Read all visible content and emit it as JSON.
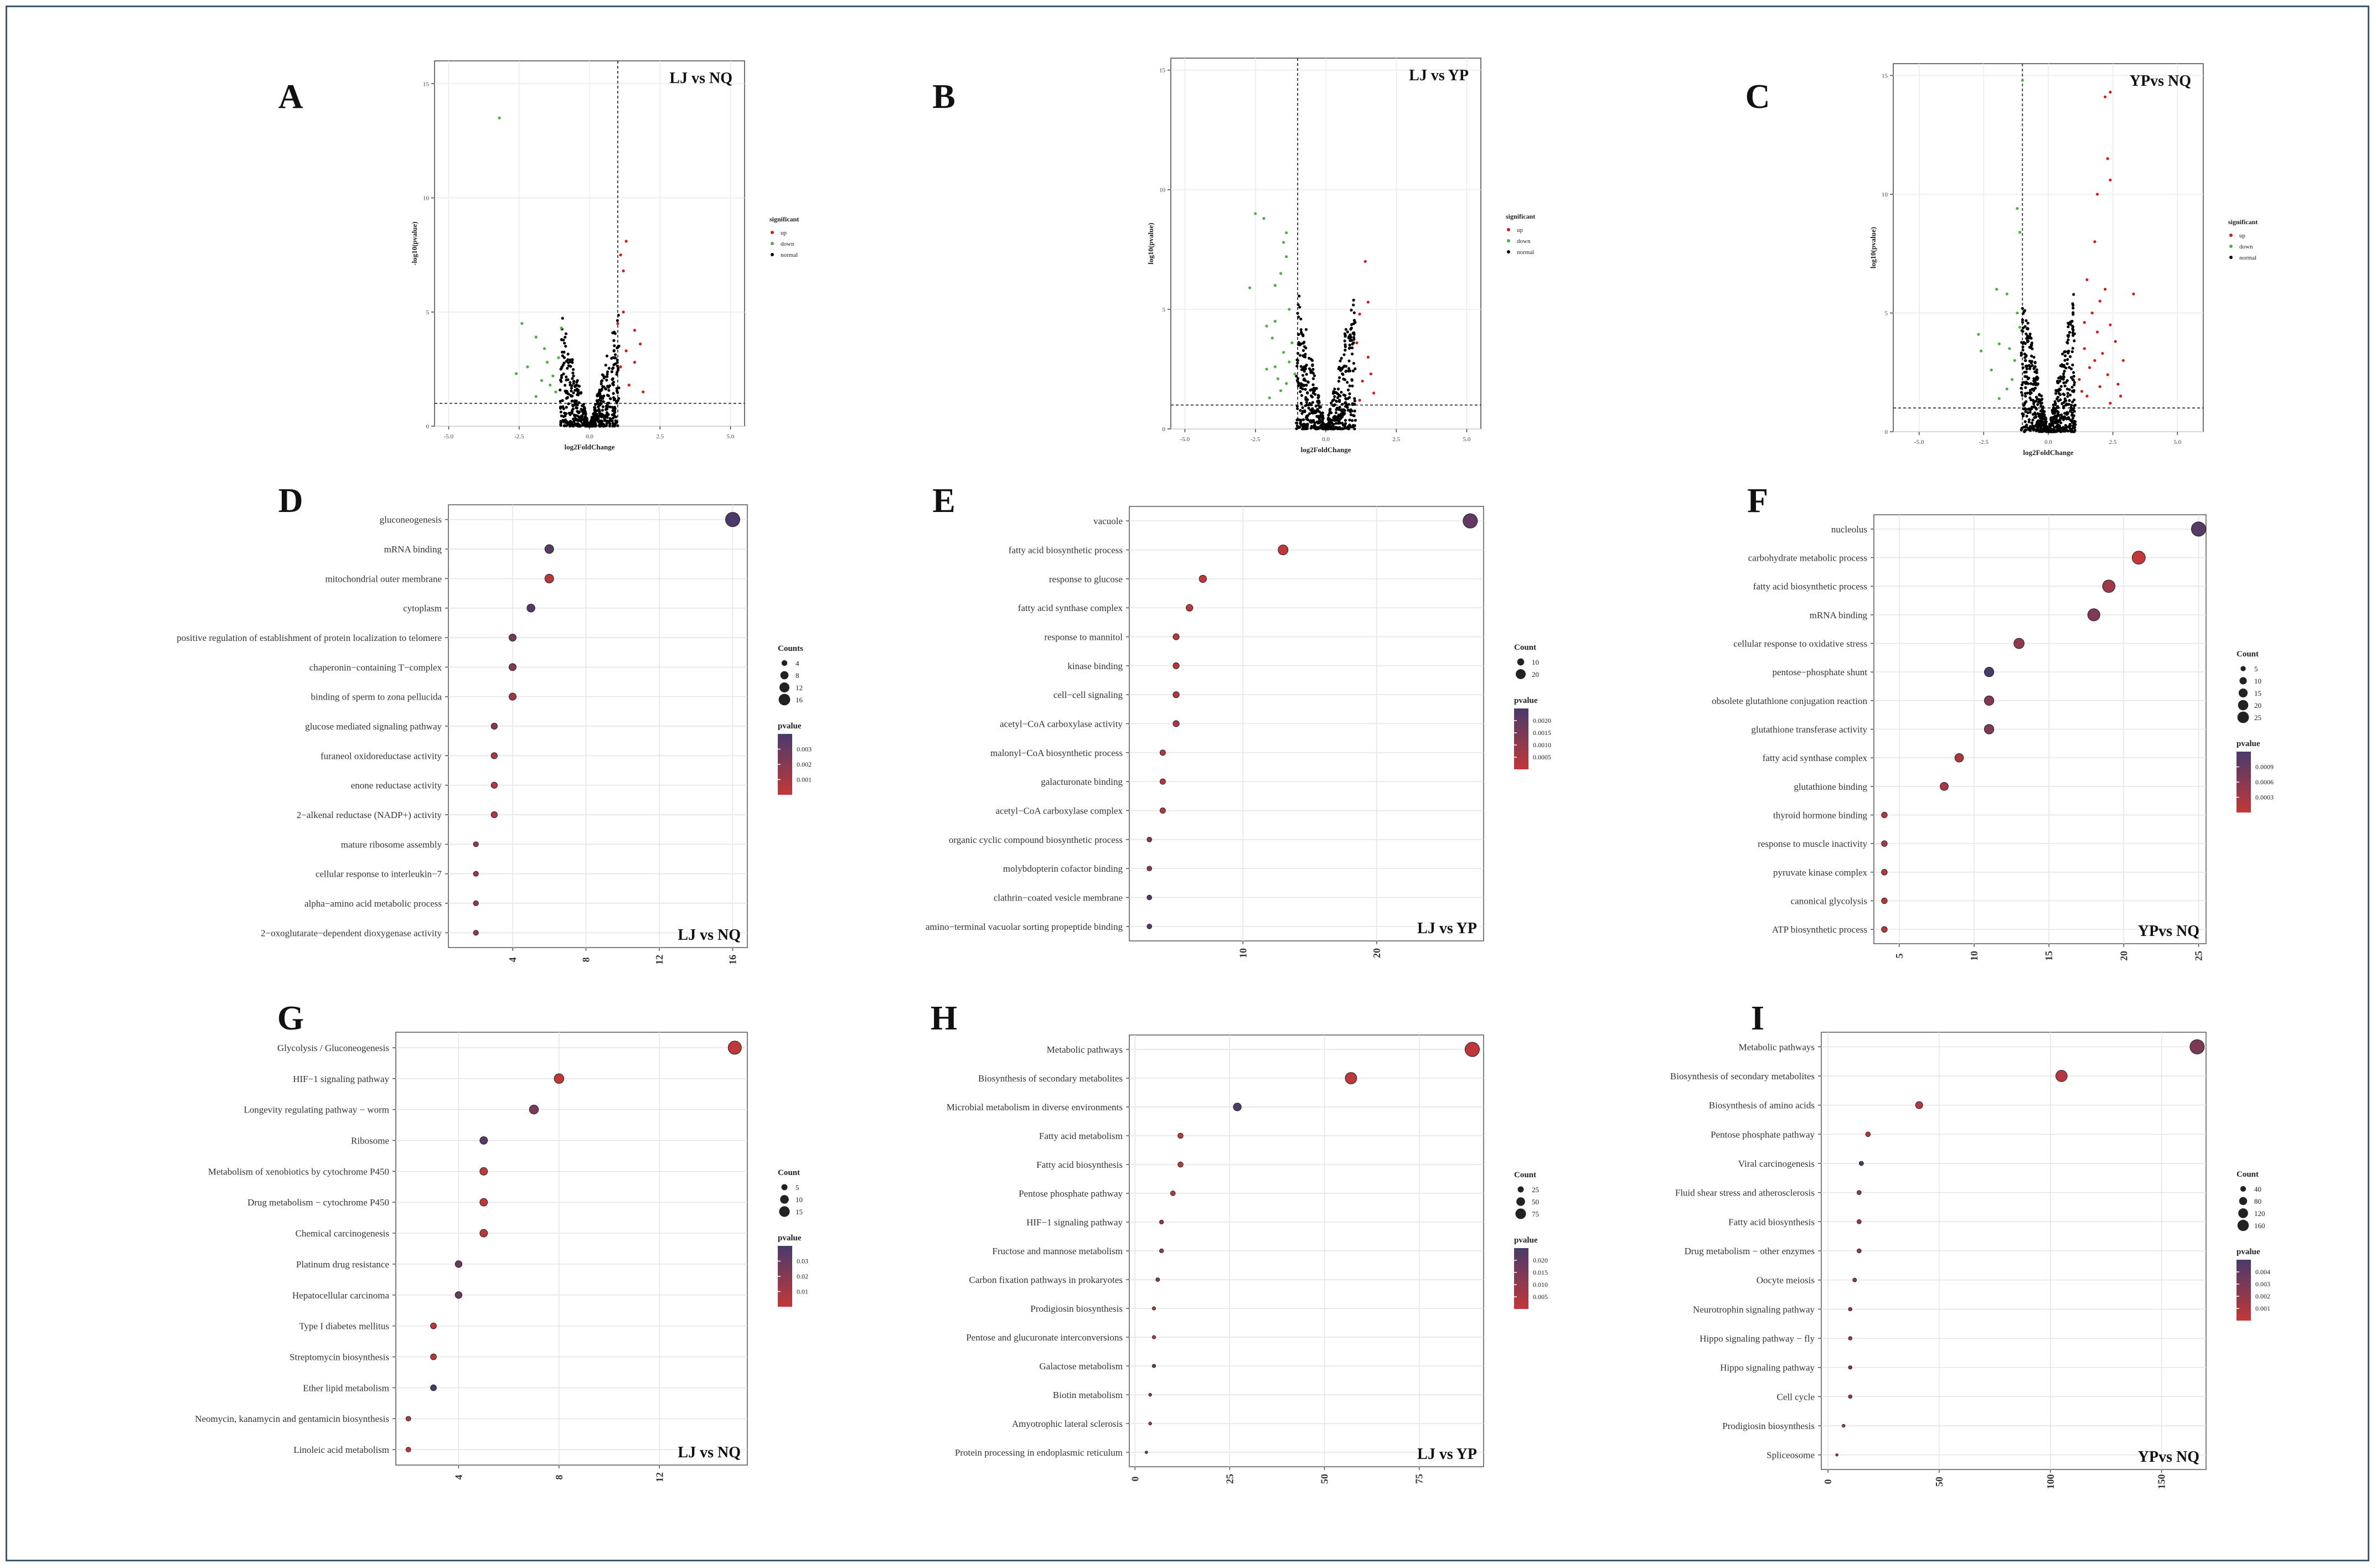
{
  "colors": {
    "up": "#d7191c",
    "down": "#4daf4a",
    "normal": "#000000",
    "high": "#c23838",
    "low": "#4a3a6b"
  },
  "volcano": {
    "xlabel": "log2FoldChange",
    "ylabel_A": "-log10(pvalue)",
    "ylabel_B": "log10(pvalue)",
    "ylabel_C": "log10(pvalue)",
    "legend_title": "significant",
    "legend_items": [
      "up",
      "down",
      "normal"
    ],
    "xticks": [
      "-5.0",
      "-2.5",
      "0.0",
      "2.5",
      "5.0"
    ]
  },
  "chart_data": [
    {
      "panel": "A",
      "type": "scatter",
      "title": "LJ vs NQ",
      "xlim": [
        -5.5,
        5.5
      ],
      "ylim": [
        0,
        16
      ],
      "yticks": [
        0,
        5,
        10,
        15
      ],
      "vline": 1,
      "hline": 1,
      "down_points": [
        [
          -3.2,
          13.5
        ],
        [
          -2.4,
          4.5
        ],
        [
          -2.2,
          2.6
        ],
        [
          -2.6,
          2.3
        ],
        [
          -1.9,
          3.9
        ],
        [
          -1.6,
          3.4
        ],
        [
          -1.3,
          2.2
        ],
        [
          -1.9,
          1.3
        ],
        [
          -1.0,
          4.3
        ],
        [
          -1.4,
          1.8
        ],
        [
          -1.7,
          2.0
        ],
        [
          -1.1,
          3.0
        ],
        [
          -1.5,
          2.8
        ],
        [
          -1.2,
          1.5
        ]
      ],
      "up_points": [
        [
          1.3,
          8.1
        ],
        [
          1.1,
          7.5
        ],
        [
          1.2,
          6.8
        ],
        [
          1.6,
          4.2
        ],
        [
          1.8,
          3.6
        ],
        [
          1.3,
          3.3
        ],
        [
          1.2,
          5.0
        ],
        [
          1.1,
          2.6
        ],
        [
          1.4,
          1.8
        ],
        [
          1.9,
          1.5
        ],
        [
          1.6,
          2.8
        ],
        [
          1.0,
          4.5
        ]
      ],
      "normal_count": 520,
      "normal_spread": [
        1.0,
        5.0
      ]
    },
    {
      "panel": "B",
      "type": "scatter",
      "title": "LJ vs YP",
      "xlim": [
        -5.5,
        5.5
      ],
      "ylim": [
        0,
        15.5
      ],
      "yticks": [
        0,
        5,
        10,
        15
      ],
      "vline": -1,
      "hline": 1,
      "down_points": [
        [
          -2.5,
          9.0
        ],
        [
          -2.2,
          8.8
        ],
        [
          -1.4,
          8.2
        ],
        [
          -1.5,
          7.8
        ],
        [
          -1.4,
          7.2
        ],
        [
          -1.6,
          6.5
        ],
        [
          -1.8,
          6.0
        ],
        [
          -2.7,
          5.9
        ],
        [
          -1.3,
          5.0
        ],
        [
          -1.8,
          4.5
        ],
        [
          -2.1,
          4.3
        ],
        [
          -1.2,
          3.6
        ],
        [
          -2.1,
          2.5
        ],
        [
          -1.7,
          2.1
        ],
        [
          -1.5,
          3.2
        ],
        [
          -1.9,
          3.8
        ],
        [
          -1.3,
          2.8
        ],
        [
          -1.6,
          1.6
        ],
        [
          -2.0,
          1.3
        ],
        [
          -1.1,
          2.3
        ],
        [
          -1.4,
          1.9
        ],
        [
          -1.8,
          2.6
        ]
      ],
      "up_points": [
        [
          1.4,
          7.0
        ],
        [
          1.2,
          4.8
        ],
        [
          1.5,
          3.0
        ],
        [
          1.6,
          2.3
        ],
        [
          1.3,
          2.0
        ],
        [
          1.1,
          3.6
        ],
        [
          1.7,
          1.5
        ],
        [
          1.2,
          1.2
        ],
        [
          1.5,
          5.3
        ]
      ],
      "normal_count": 520,
      "normal_spread": [
        1.0,
        6.0
      ]
    },
    {
      "panel": "C",
      "type": "scatter",
      "title": "YPvs NQ",
      "xlim": [
        -6.0,
        6.0
      ],
      "ylim": [
        0,
        15.5
      ],
      "yticks": [
        0,
        5,
        10,
        15
      ],
      "vline": -1,
      "hline": 1,
      "down_points": [
        [
          -1.0,
          14.8
        ],
        [
          -1.2,
          9.4
        ],
        [
          -1.1,
          8.4
        ],
        [
          -2.0,
          6.0
        ],
        [
          -1.6,
          5.8
        ],
        [
          -1.2,
          5.0
        ],
        [
          -2.7,
          4.1
        ],
        [
          -2.6,
          3.4
        ],
        [
          -1.9,
          3.7
        ],
        [
          -1.3,
          3.0
        ],
        [
          -2.2,
          2.6
        ],
        [
          -1.4,
          2.2
        ],
        [
          -1.6,
          1.8
        ],
        [
          -1.1,
          4.4
        ],
        [
          -1.9,
          1.4
        ],
        [
          -1.5,
          3.5
        ]
      ],
      "up_points": [
        [
          2.4,
          14.3
        ],
        [
          2.2,
          14.1
        ],
        [
          2.3,
          11.5
        ],
        [
          2.4,
          10.6
        ],
        [
          1.9,
          10.0
        ],
        [
          1.8,
          8.0
        ],
        [
          1.5,
          6.4
        ],
        [
          2.2,
          6.0
        ],
        [
          3.3,
          5.8
        ],
        [
          2.0,
          5.5
        ],
        [
          1.7,
          5.0
        ],
        [
          1.4,
          4.6
        ],
        [
          2.4,
          4.5
        ],
        [
          1.9,
          4.2
        ],
        [
          2.6,
          3.8
        ],
        [
          1.4,
          3.5
        ],
        [
          2.1,
          3.3
        ],
        [
          2.9,
          3.0
        ],
        [
          1.6,
          2.7
        ],
        [
          2.3,
          2.4
        ],
        [
          1.2,
          2.2
        ],
        [
          2.0,
          1.9
        ],
        [
          2.7,
          2.0
        ],
        [
          1.5,
          1.5
        ],
        [
          2.4,
          1.2
        ],
        [
          1.8,
          3.0
        ],
        [
          1.3,
          1.7
        ],
        [
          2.8,
          1.5
        ]
      ],
      "normal_count": 620,
      "normal_spread": [
        1.0,
        6.0
      ]
    },
    {
      "panel": "D",
      "type": "scatter",
      "title": "LJ vs NQ",
      "terms": [
        "gluconeogenesis",
        "mRNA binding",
        "mitochondrial outer membrane",
        "cytoplasm",
        "positive regulation of establishment of protein localization to telomere",
        "chaperonin−containing T−complex",
        "binding of sperm to zona pellucida",
        "glucose mediated signaling pathway",
        "furaneol oxidoreductase activity",
        "enone reductase activity",
        "2−alkenal reductase (NADP+) activity",
        "mature ribosome assembly",
        "cellular response to interleukin−7",
        "alpha−amino acid metabolic process",
        "2−oxoglutarate−dependent dioxygenase activity"
      ],
      "counts": [
        16,
        6,
        6,
        5,
        4,
        4,
        4,
        3,
        3,
        3,
        3,
        2,
        2,
        2,
        2
      ],
      "pvalues": [
        0.0045,
        0.004,
        0.0009,
        0.0042,
        0.0032,
        0.0028,
        0.0018,
        0.0025,
        0.0012,
        0.0011,
        0.0011,
        0.002,
        0.002,
        0.002,
        0.002
      ],
      "xlim": [
        0.5,
        16.8
      ],
      "xticks": [
        4,
        8,
        12,
        16
      ],
      "size_legend_title": "Counts",
      "size_legend": [
        4,
        8,
        12,
        16
      ],
      "color_legend_title": "pvalue",
      "color_legend": [
        "0.003",
        "0.002",
        "0.001"
      ],
      "prange": [
        0.0005,
        0.0045
      ]
    },
    {
      "panel": "E",
      "type": "scatter",
      "title": "LJ vs YP",
      "terms": [
        "vacuole",
        "fatty acid biosynthetic process",
        "response to glucose",
        "fatty acid synthase complex",
        "response to mannitol",
        "kinase binding",
        "cell−cell signaling",
        "acetyl−CoA carboxylase activity",
        "malonyl−CoA biosynthetic process",
        "galacturonate binding",
        "acetyl−CoA carboxylase complex",
        "organic cyclic compound biosynthetic process",
        "molybdopterin cofactor binding",
        "clathrin−coated vesicle membrane",
        "amino−terminal vacuolar sorting propeptide binding"
      ],
      "counts": [
        27,
        13,
        7,
        6,
        5,
        5,
        5,
        5,
        4,
        4,
        4,
        3,
        3,
        3,
        3
      ],
      "pvalues": [
        0.018,
        0.003,
        0.003,
        0.003,
        0.003,
        0.004,
        0.004,
        0.005,
        0.004,
        0.003,
        0.004,
        0.012,
        0.01,
        0.02,
        0.02
      ],
      "xlim": [
        1.5,
        28
      ],
      "xticks": [
        10,
        20
      ],
      "size_legend_title": "Count",
      "size_legend": [
        10,
        20
      ],
      "color_legend_title": "pvalue",
      "color_legend": [
        "0.0020",
        "0.0015",
        "0.0010",
        "0.0005"
      ],
      "prange": [
        0.002,
        0.022
      ]
    },
    {
      "panel": "F",
      "type": "scatter",
      "title": "YPvs NQ",
      "terms": [
        "nucleolus",
        "carbohydrate metabolic process",
        "fatty acid biosynthetic process",
        "mRNA binding",
        "cellular response to oxidative stress",
        "pentose−phosphate shunt",
        "obsolete glutathione conjugation reaction",
        "glutathione transferase activity",
        "fatty acid synthase complex",
        "glutathione binding",
        "thyroid hormone binding",
        "response to muscle inactivity",
        "pyruvate kinase complex",
        "canonical glycolysis",
        "ATP biosynthetic process"
      ],
      "counts": [
        25,
        21,
        19,
        18,
        13,
        11,
        11,
        11,
        9,
        8,
        4,
        4,
        4,
        4,
        4
      ],
      "pvalues": [
        0.0009,
        0.0001,
        0.0004,
        0.0006,
        0.0005,
        0.001,
        0.0006,
        0.0006,
        0.0003,
        0.0003,
        0.0002,
        0.0002,
        0.0002,
        0.0002,
        0.0002
      ],
      "xlim": [
        3.3,
        25.5
      ],
      "xticks": [
        5,
        10,
        15,
        20,
        25
      ],
      "size_legend_title": "Count",
      "size_legend": [
        5,
        10,
        15,
        20,
        25
      ],
      "color_legend_title": "pvalue",
      "color_legend": [
        "0.0009",
        "0.0006",
        "0.0003"
      ],
      "prange": [
        0.0001,
        0.001
      ]
    },
    {
      "panel": "G",
      "type": "scatter",
      "title": "LJ vs NQ",
      "terms": [
        "Glycolysis / Gluconeogenesis",
        "HIF−1 signaling pathway",
        "Longevity regulating pathway − worm",
        "Ribosome",
        "Metabolism of xenobiotics by cytochrome P450",
        "Drug metabolism − cytochrome P450",
        "Chemical carcinogenesis",
        "Platinum drug resistance",
        "Hepatocellular carcinoma",
        "Type I diabetes mellitus",
        "Streptomycin biosynthesis",
        "Ether lipid metabolism",
        "Neomycin, kanamycin and gentamicin biosynthesis",
        "Linoleic acid metabolism"
      ],
      "counts": [
        15,
        8,
        7,
        5,
        5,
        5,
        5,
        4,
        4,
        3,
        3,
        3,
        2,
        2
      ],
      "pvalues": [
        0.003,
        0.004,
        0.025,
        0.035,
        0.004,
        0.004,
        0.005,
        0.03,
        0.03,
        0.005,
        0.005,
        0.04,
        0.005,
        0.005
      ],
      "xlim": [
        1.5,
        15.5
      ],
      "xticks": [
        4,
        8,
        12
      ],
      "size_legend_title": "Count",
      "size_legend": [
        5,
        10,
        15
      ],
      "color_legend_title": "pvalue",
      "color_legend": [
        "0.03",
        "0.02",
        "0.01"
      ],
      "prange": [
        0.002,
        0.04
      ]
    },
    {
      "panel": "H",
      "type": "scatter",
      "title": "LJ vs YP",
      "terms": [
        "Metabolic pathways",
        "Biosynthesis of secondary metabolites",
        "Microbial metabolism in diverse environments",
        "Fatty acid metabolism",
        "Fatty acid biosynthesis",
        "Pentose phosphate pathway",
        "HIF−1 signaling pathway",
        "Fructose and mannose metabolism",
        "Carbon fixation pathways in prokaryotes",
        "Prodigiosin biosynthesis",
        "Pentose and glucuronate interconversions",
        "Galactose metabolism",
        "Biotin metabolism",
        "Amyotrophic lateral sclerosis",
        "Protein processing in endoplasmic reticulum"
      ],
      "counts": [
        89,
        57,
        27,
        12,
        12,
        10,
        7,
        7,
        6,
        5,
        5,
        5,
        4,
        4,
        3
      ],
      "pvalues": [
        0.003,
        0.003,
        0.021,
        0.003,
        0.003,
        0.004,
        0.01,
        0.01,
        0.012,
        0.004,
        0.004,
        0.018,
        0.006,
        0.006,
        0.01
      ],
      "xlim": [
        -1.5,
        92
      ],
      "xticks": [
        0,
        25,
        50,
        75
      ],
      "size_legend_title": "Count",
      "size_legend": [
        25,
        50,
        75
      ],
      "color_legend_title": "pvalue",
      "color_legend": [
        "0.020",
        "0.015",
        "0.010",
        "0.005"
      ],
      "prange": [
        0.002,
        0.022
      ]
    },
    {
      "panel": "I",
      "type": "scatter",
      "title": "YPvs NQ",
      "terms": [
        "Metabolic pathways",
        "Biosynthesis of secondary metabolites",
        "Biosynthesis of amino acids",
        "Pentose phosphate pathway",
        "Viral carcinogenesis",
        "Fluid shear stress and atherosclerosis",
        "Fatty acid biosynthesis",
        "Drug metabolism − other enzymes",
        "Oocyte meiosis",
        "Neurotrophin signaling pathway",
        "Hippo signaling pathway − fly",
        "Hippo signaling pathway",
        "Cell cycle",
        "Prodigiosin biosynthesis",
        "Spliceosome"
      ],
      "counts": [
        166,
        105,
        41,
        18,
        15,
        14,
        14,
        14,
        12,
        10,
        10,
        10,
        10,
        7,
        4
      ],
      "pvalues": [
        0.003,
        0.001,
        0.001,
        0.001,
        0.0045,
        0.002,
        0.002,
        0.002,
        0.002,
        0.002,
        0.002,
        0.003,
        0.002,
        0.001,
        0.001
      ],
      "xlim": [
        -3,
        170
      ],
      "xticks": [
        0,
        50,
        100,
        150
      ],
      "size_legend_title": "Count",
      "size_legend": [
        40,
        80,
        120,
        160
      ],
      "color_legend_title": "pvalue",
      "color_legend": [
        "0.004",
        "0.003",
        "0.002",
        "0.001"
      ],
      "prange": [
        0.0005,
        0.0048
      ]
    }
  ]
}
